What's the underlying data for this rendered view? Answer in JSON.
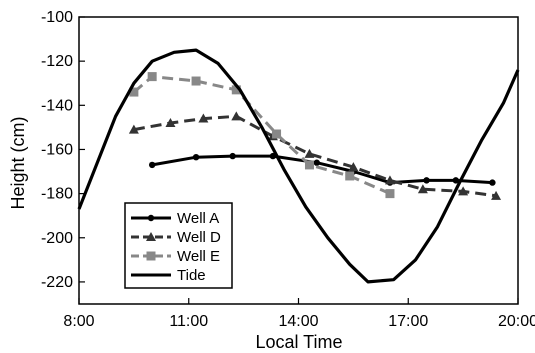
{
  "chart_data": {
    "type": "line",
    "xlabel": "Local Time",
    "ylabel": "Height (cm)",
    "xlim": [
      8,
      20
    ],
    "ylim": [
      -230,
      -100
    ],
    "xticks": [
      {
        "value": 8,
        "label": "8:00"
      },
      {
        "value": 11,
        "label": "11:00"
      },
      {
        "value": 14,
        "label": "14:00"
      },
      {
        "value": 17,
        "label": "17:00"
      },
      {
        "value": 20,
        "label": "20:00"
      }
    ],
    "yticks": [
      {
        "value": -100,
        "label": "-100"
      },
      {
        "value": -120,
        "label": "-120"
      },
      {
        "value": -140,
        "label": "-140"
      },
      {
        "value": -160,
        "label": "-160"
      },
      {
        "value": -180,
        "label": "-180"
      },
      {
        "value": -200,
        "label": "-200"
      },
      {
        "value": -220,
        "label": "-220"
      }
    ],
    "grid": false,
    "legend_position": "bottom-left",
    "series": [
      {
        "name": "Well A",
        "style": "solid",
        "marker": "circle",
        "color": "#000000",
        "points": [
          [
            10.0,
            -167
          ],
          [
            11.2,
            -163.5
          ],
          [
            12.2,
            -163
          ],
          [
            13.3,
            -163
          ],
          [
            14.5,
            -166
          ],
          [
            15.5,
            -170
          ],
          [
            16.5,
            -175
          ],
          [
            17.5,
            -174
          ],
          [
            18.3,
            -174
          ],
          [
            19.3,
            -175
          ]
        ]
      },
      {
        "name": "Well D",
        "style": "dashed",
        "marker": "triangle",
        "color": "#333333",
        "points": [
          [
            9.5,
            -151
          ],
          [
            10.5,
            -148
          ],
          [
            11.4,
            -146
          ],
          [
            12.3,
            -145
          ],
          [
            13.3,
            -154
          ],
          [
            14.3,
            -162
          ],
          [
            15.5,
            -168
          ],
          [
            16.5,
            -174
          ],
          [
            17.4,
            -178
          ],
          [
            18.5,
            -179
          ],
          [
            19.4,
            -181
          ]
        ]
      },
      {
        "name": "Well E",
        "style": "dashed",
        "marker": "square",
        "color": "#888888",
        "points": [
          [
            9.5,
            -134
          ],
          [
            10.0,
            -127
          ],
          [
            11.2,
            -129
          ],
          [
            12.3,
            -133
          ],
          [
            13.4,
            -153
          ],
          [
            14.3,
            -167
          ],
          [
            15.4,
            -172
          ],
          [
            16.5,
            -180
          ]
        ]
      },
      {
        "name": "Tide",
        "style": "solid",
        "marker": "none",
        "color": "#000000",
        "points": [
          [
            8.0,
            -187
          ],
          [
            8.5,
            -166
          ],
          [
            9.0,
            -145
          ],
          [
            9.5,
            -130
          ],
          [
            10.0,
            -120
          ],
          [
            10.6,
            -116
          ],
          [
            11.2,
            -115
          ],
          [
            11.8,
            -121
          ],
          [
            12.4,
            -133
          ],
          [
            13.0,
            -150
          ],
          [
            13.6,
            -169
          ],
          [
            14.2,
            -186
          ],
          [
            14.8,
            -200
          ],
          [
            15.4,
            -212
          ],
          [
            15.9,
            -220
          ],
          [
            16.6,
            -219
          ],
          [
            17.2,
            -210
          ],
          [
            17.8,
            -195
          ],
          [
            18.4,
            -175
          ],
          [
            19.0,
            -156
          ],
          [
            19.6,
            -139
          ],
          [
            20.0,
            -124
          ]
        ]
      }
    ]
  }
}
